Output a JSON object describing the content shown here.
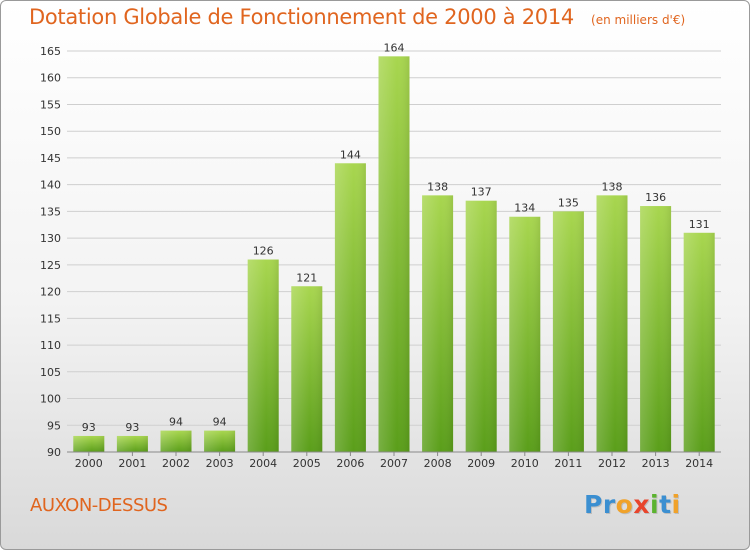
{
  "title": "Dotation Globale de Fonctionnement de 2000 à 2014",
  "unit": "(en milliers d'€)",
  "commune": "AUXON-DESSUS",
  "logo": {
    "letters": [
      {
        "ch": "P",
        "color": "#3b8fd1"
      },
      {
        "ch": "r",
        "color": "#3b8fd1"
      },
      {
        "ch": "o",
        "color": "#f0a22a"
      },
      {
        "ch": "x",
        "color": "#e8452c"
      },
      {
        "ch": "i",
        "color": "#5bb32f"
      },
      {
        "ch": "t",
        "color": "#3b8fd1"
      },
      {
        "ch": "i",
        "color": "#f0a22a"
      }
    ]
  },
  "colors": {
    "title": "#e0651f",
    "bar_top": "#a8d64f",
    "bar_bottom": "#5a9e1a",
    "grid": "#cfcfcf",
    "axis_text": "#333333"
  },
  "chart_data": {
    "type": "bar",
    "categories": [
      "2000",
      "2001",
      "2002",
      "2003",
      "2004",
      "2005",
      "2006",
      "2007",
      "2008",
      "2009",
      "2010",
      "2011",
      "2012",
      "2013",
      "2014"
    ],
    "values": [
      93,
      93,
      94,
      94,
      126,
      121,
      144,
      164,
      138,
      137,
      134,
      135,
      138,
      136,
      131
    ],
    "ylim": [
      90,
      165
    ],
    "yticks": [
      90,
      95,
      100,
      105,
      110,
      115,
      120,
      125,
      130,
      135,
      140,
      145,
      150,
      155,
      160,
      165
    ],
    "grid": true,
    "data_labels": true
  }
}
